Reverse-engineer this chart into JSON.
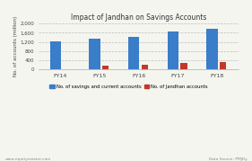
{
  "title": "Impact of Jandhan on Savings Accounts",
  "categories": [
    "FY14",
    "FY15",
    "FY16",
    "FY17",
    "FY18"
  ],
  "savings_values": [
    1220,
    1340,
    1400,
    1650,
    1760
  ],
  "jandhan_values": [
    0,
    160,
    180,
    290,
    310
  ],
  "savings_color": "#3A7DC9",
  "jandhan_color": "#C0392B",
  "ylabel": "No. of accounts (million)",
  "ylim": [
    0,
    2000
  ],
  "yticks": [
    0,
    400,
    800,
    1200,
    1600,
    2000
  ],
  "ytick_labels": [
    "0",
    "400",
    "800",
    "1,200",
    "1,600",
    "2,000"
  ],
  "legend_savings": "No. of savings and current accounts",
  "legend_jandhan": "No. of Jandhan accounts",
  "footer_left": "www.equitymaster.com",
  "footer_right": "Data Source: PMJDy",
  "background_color": "#F5F5F0",
  "plot_bg_color": "#F5F5F0",
  "grid_color": "#BBBBBB"
}
